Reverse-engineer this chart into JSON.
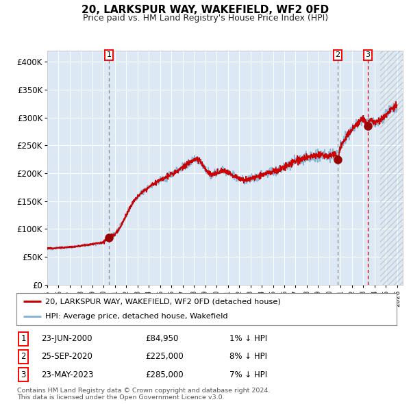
{
  "title": "20, LARKSPUR WAY, WAKEFIELD, WF2 0FD",
  "subtitle": "Price paid vs. HM Land Registry's House Price Index (HPI)",
  "hpi_label": "HPI: Average price, detached house, Wakefield",
  "property_label": "20, LARKSPUR WAY, WAKEFIELD, WF2 0FD (detached house)",
  "footer1": "Contains HM Land Registry data © Crown copyright and database right 2024.",
  "footer2": "This data is licensed under the Open Government Licence v3.0.",
  "transactions": [
    {
      "num": 1,
      "date": "23-JUN-2000",
      "price": 84950,
      "pct": "1%",
      "dir": "↓",
      "year": 2000.47
    },
    {
      "num": 2,
      "date": "25-SEP-2020",
      "price": 225000,
      "pct": "8%",
      "dir": "↓",
      "year": 2020.73
    },
    {
      "num": 3,
      "date": "23-MAY-2023",
      "price": 285000,
      "pct": "7%",
      "dir": "↓",
      "year": 2023.39
    }
  ],
  "xmin": 1995.0,
  "xmax": 2026.5,
  "ymin": 0,
  "ymax": 420000,
  "yticks": [
    0,
    50000,
    100000,
    150000,
    200000,
    250000,
    300000,
    350000,
    400000
  ],
  "ytick_labels": [
    "£0",
    "£50K",
    "£100K",
    "£150K",
    "£200K",
    "£250K",
    "£300K",
    "£350K",
    "£400K"
  ],
  "bg_color": "#dce9f5",
  "line_color_hpi": "#8ab4d4",
  "line_color_price": "#cc0000",
  "marker_color": "#990000",
  "vline1_color": "#888888",
  "vline2_color": "#cc0000",
  "future_xstart": 2024.5,
  "hpi_curve": [
    [
      1995.0,
      65000
    ],
    [
      1996.0,
      66000
    ],
    [
      1997.0,
      67500
    ],
    [
      1998.0,
      70000
    ],
    [
      1999.0,
      73000
    ],
    [
      2000.0,
      76000
    ],
    [
      2000.47,
      84950
    ],
    [
      2001.0,
      90000
    ],
    [
      2001.5,
      105000
    ],
    [
      2002.0,
      125000
    ],
    [
      2002.5,
      145000
    ],
    [
      2003.0,
      158000
    ],
    [
      2003.5,
      168000
    ],
    [
      2004.0,
      175000
    ],
    [
      2004.5,
      182000
    ],
    [
      2005.0,
      188000
    ],
    [
      2005.5,
      193000
    ],
    [
      2006.0,
      198000
    ],
    [
      2006.5,
      204000
    ],
    [
      2007.0,
      210000
    ],
    [
      2007.5,
      218000
    ],
    [
      2008.0,
      224000
    ],
    [
      2008.5,
      224000
    ],
    [
      2009.0,
      208000
    ],
    [
      2009.5,
      196000
    ],
    [
      2010.0,
      200000
    ],
    [
      2010.5,
      205000
    ],
    [
      2011.0,
      202000
    ],
    [
      2011.5,
      196000
    ],
    [
      2012.0,
      190000
    ],
    [
      2012.5,
      188000
    ],
    [
      2013.0,
      190000
    ],
    [
      2013.5,
      193000
    ],
    [
      2014.0,
      197000
    ],
    [
      2014.5,
      200000
    ],
    [
      2015.0,
      203000
    ],
    [
      2015.5,
      207000
    ],
    [
      2016.0,
      211000
    ],
    [
      2016.5,
      216000
    ],
    [
      2017.0,
      221000
    ],
    [
      2017.5,
      225000
    ],
    [
      2018.0,
      228000
    ],
    [
      2018.5,
      230000
    ],
    [
      2019.0,
      231000
    ],
    [
      2019.5,
      232000
    ],
    [
      2020.0,
      231000
    ],
    [
      2020.5,
      235000
    ],
    [
      2020.73,
      225000
    ],
    [
      2021.0,
      248000
    ],
    [
      2021.5,
      265000
    ],
    [
      2022.0,
      278000
    ],
    [
      2022.5,
      290000
    ],
    [
      2023.0,
      298000
    ],
    [
      2023.39,
      285000
    ],
    [
      2023.5,
      295000
    ],
    [
      2024.0,
      292000
    ],
    [
      2024.5,
      295000
    ],
    [
      2025.0,
      305000
    ],
    [
      2025.5,
      315000
    ],
    [
      2026.0,
      320000
    ]
  ]
}
